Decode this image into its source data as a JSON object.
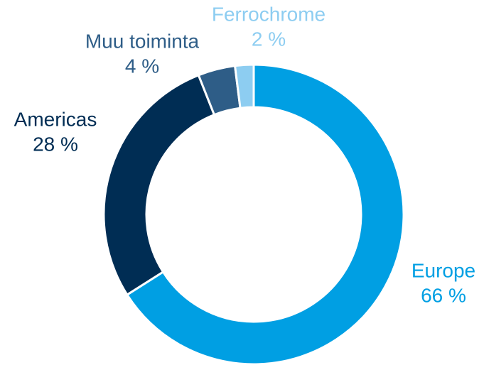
{
  "chart_data": {
    "type": "donut",
    "categories": [
      "Europe",
      "Americas",
      "Muu toiminta",
      "Ferrochrome"
    ],
    "values": [
      66,
      28,
      4,
      2
    ],
    "value_labels": [
      "66 %",
      "28 %",
      "4 %",
      "2 %"
    ],
    "colors": [
      "#009fe3",
      "#002d54",
      "#2e5d87",
      "#8dcdf1"
    ]
  }
}
